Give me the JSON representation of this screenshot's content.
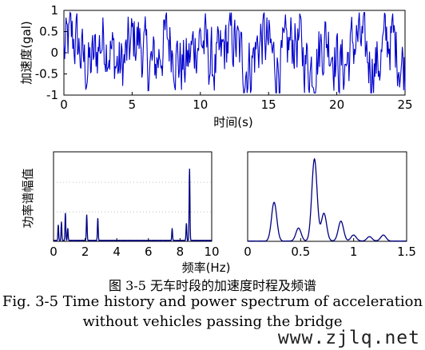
{
  "chart_data": [
    {
      "type": "line",
      "xlabel": "时间(s)",
      "ylabel": "加速度(gal)",
      "xlim": [
        0,
        25
      ],
      "ylim": [
        -1,
        1
      ],
      "x_ticks": [
        "0",
        "5",
        "10",
        "15",
        "20",
        "25"
      ],
      "y_ticks": [
        "1",
        "0.5",
        "0",
        "-0.5",
        "-1"
      ],
      "series_color": "#0000cc",
      "sample_count": 500,
      "amplitude_typical": 0.45,
      "description_of_signal": "dense random acceleration fluctuating roughly between -0.8 and 0.8 gal"
    },
    {
      "type": "line",
      "xlabel": "频率(Hz)",
      "ylabel": "功率谱幅值",
      "xlim": [
        0,
        10
      ],
      "x_ticks": [
        "0",
        "2",
        "4",
        "6",
        "8",
        "10"
      ],
      "series_color": "#000080",
      "peaks": [
        {
          "x": 0.3,
          "y": 0.18
        },
        {
          "x": 0.5,
          "y": 0.22
        },
        {
          "x": 0.75,
          "y": 0.32
        },
        {
          "x": 0.9,
          "y": 0.14
        },
        {
          "x": 2.1,
          "y": 0.3
        },
        {
          "x": 2.8,
          "y": 0.26
        },
        {
          "x": 7.5,
          "y": 0.14
        },
        {
          "x": 8.6,
          "y": 0.83
        },
        {
          "x": 8.4,
          "y": 0.2
        }
      ]
    },
    {
      "type": "line",
      "xlim": [
        0,
        1.5
      ],
      "x_ticks": [
        "0",
        "0.5",
        "1",
        "1.5"
      ],
      "series_color": "#000080",
      "peaks": [
        {
          "x": 0.25,
          "y": 0.45
        },
        {
          "x": 0.48,
          "y": 0.15
        },
        {
          "x": 0.63,
          "y": 0.95
        },
        {
          "x": 0.72,
          "y": 0.32
        },
        {
          "x": 0.88,
          "y": 0.23
        },
        {
          "x": 1.0,
          "y": 0.07
        },
        {
          "x": 1.15,
          "y": 0.05
        },
        {
          "x": 1.28,
          "y": 0.07
        }
      ]
    }
  ],
  "caption": {
    "cn": "图  3-5  无车时段的加速度时程及频谱",
    "en_line1": "Fig. 3-5 Time history and power spectrum of acceleration",
    "en_line2": "without vehicles passing the bridge"
  },
  "watermark": "www.zjlq.net"
}
